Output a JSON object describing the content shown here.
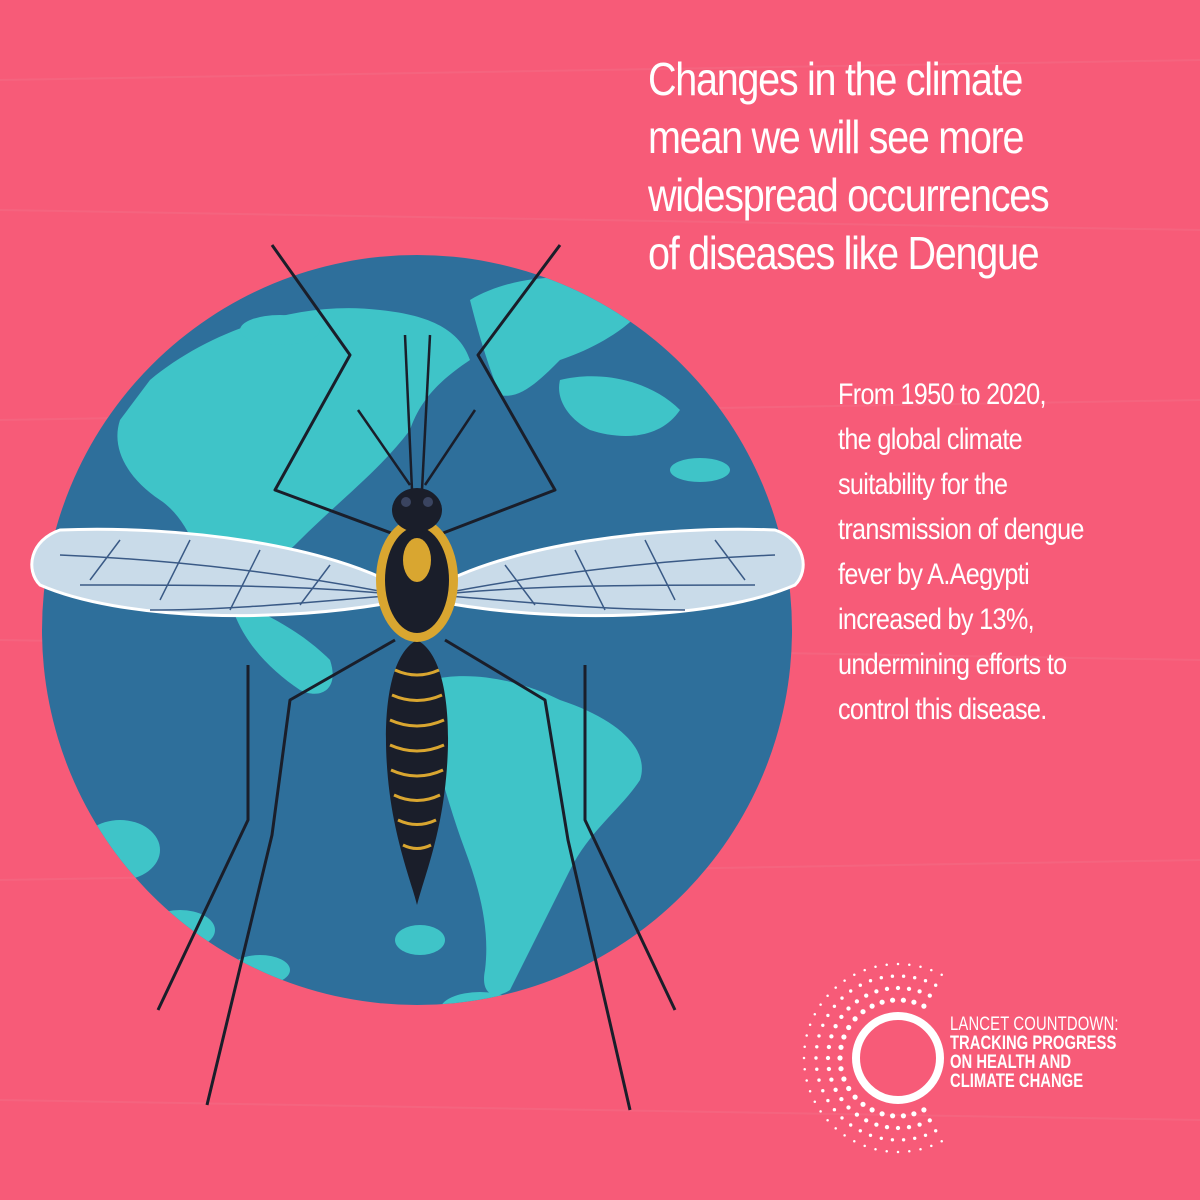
{
  "colors": {
    "background": "#f75b78",
    "globe_ocean": "#2e6f9b",
    "globe_land": "#3fc4c8",
    "wing": "#c9dbe9",
    "body_dark": "#1a1e2a",
    "body_gold": "#d9a630",
    "text": "#ffffff"
  },
  "headline": {
    "lines": [
      "Changes in the climate",
      "mean we will see more",
      "widespread occurrences",
      "of diseases like Dengue"
    ]
  },
  "stat": {
    "lines": [
      "From 1950 to 2020,",
      "the global climate",
      "suitability for the",
      "transmission of dengue",
      "fever by A.Aegypti",
      "increased by 13%,",
      "undermining efforts to",
      "control this disease."
    ]
  },
  "logo": {
    "line1": "LANCET COUNTDOWN:",
    "line2": "TRACKING PROGRESS",
    "line3": "ON HEALTH AND",
    "line4": "CLIMATE CHANGE"
  },
  "icons": [
    "mosquito-icon",
    "globe-icon",
    "lancet-countdown-logo-icon"
  ]
}
